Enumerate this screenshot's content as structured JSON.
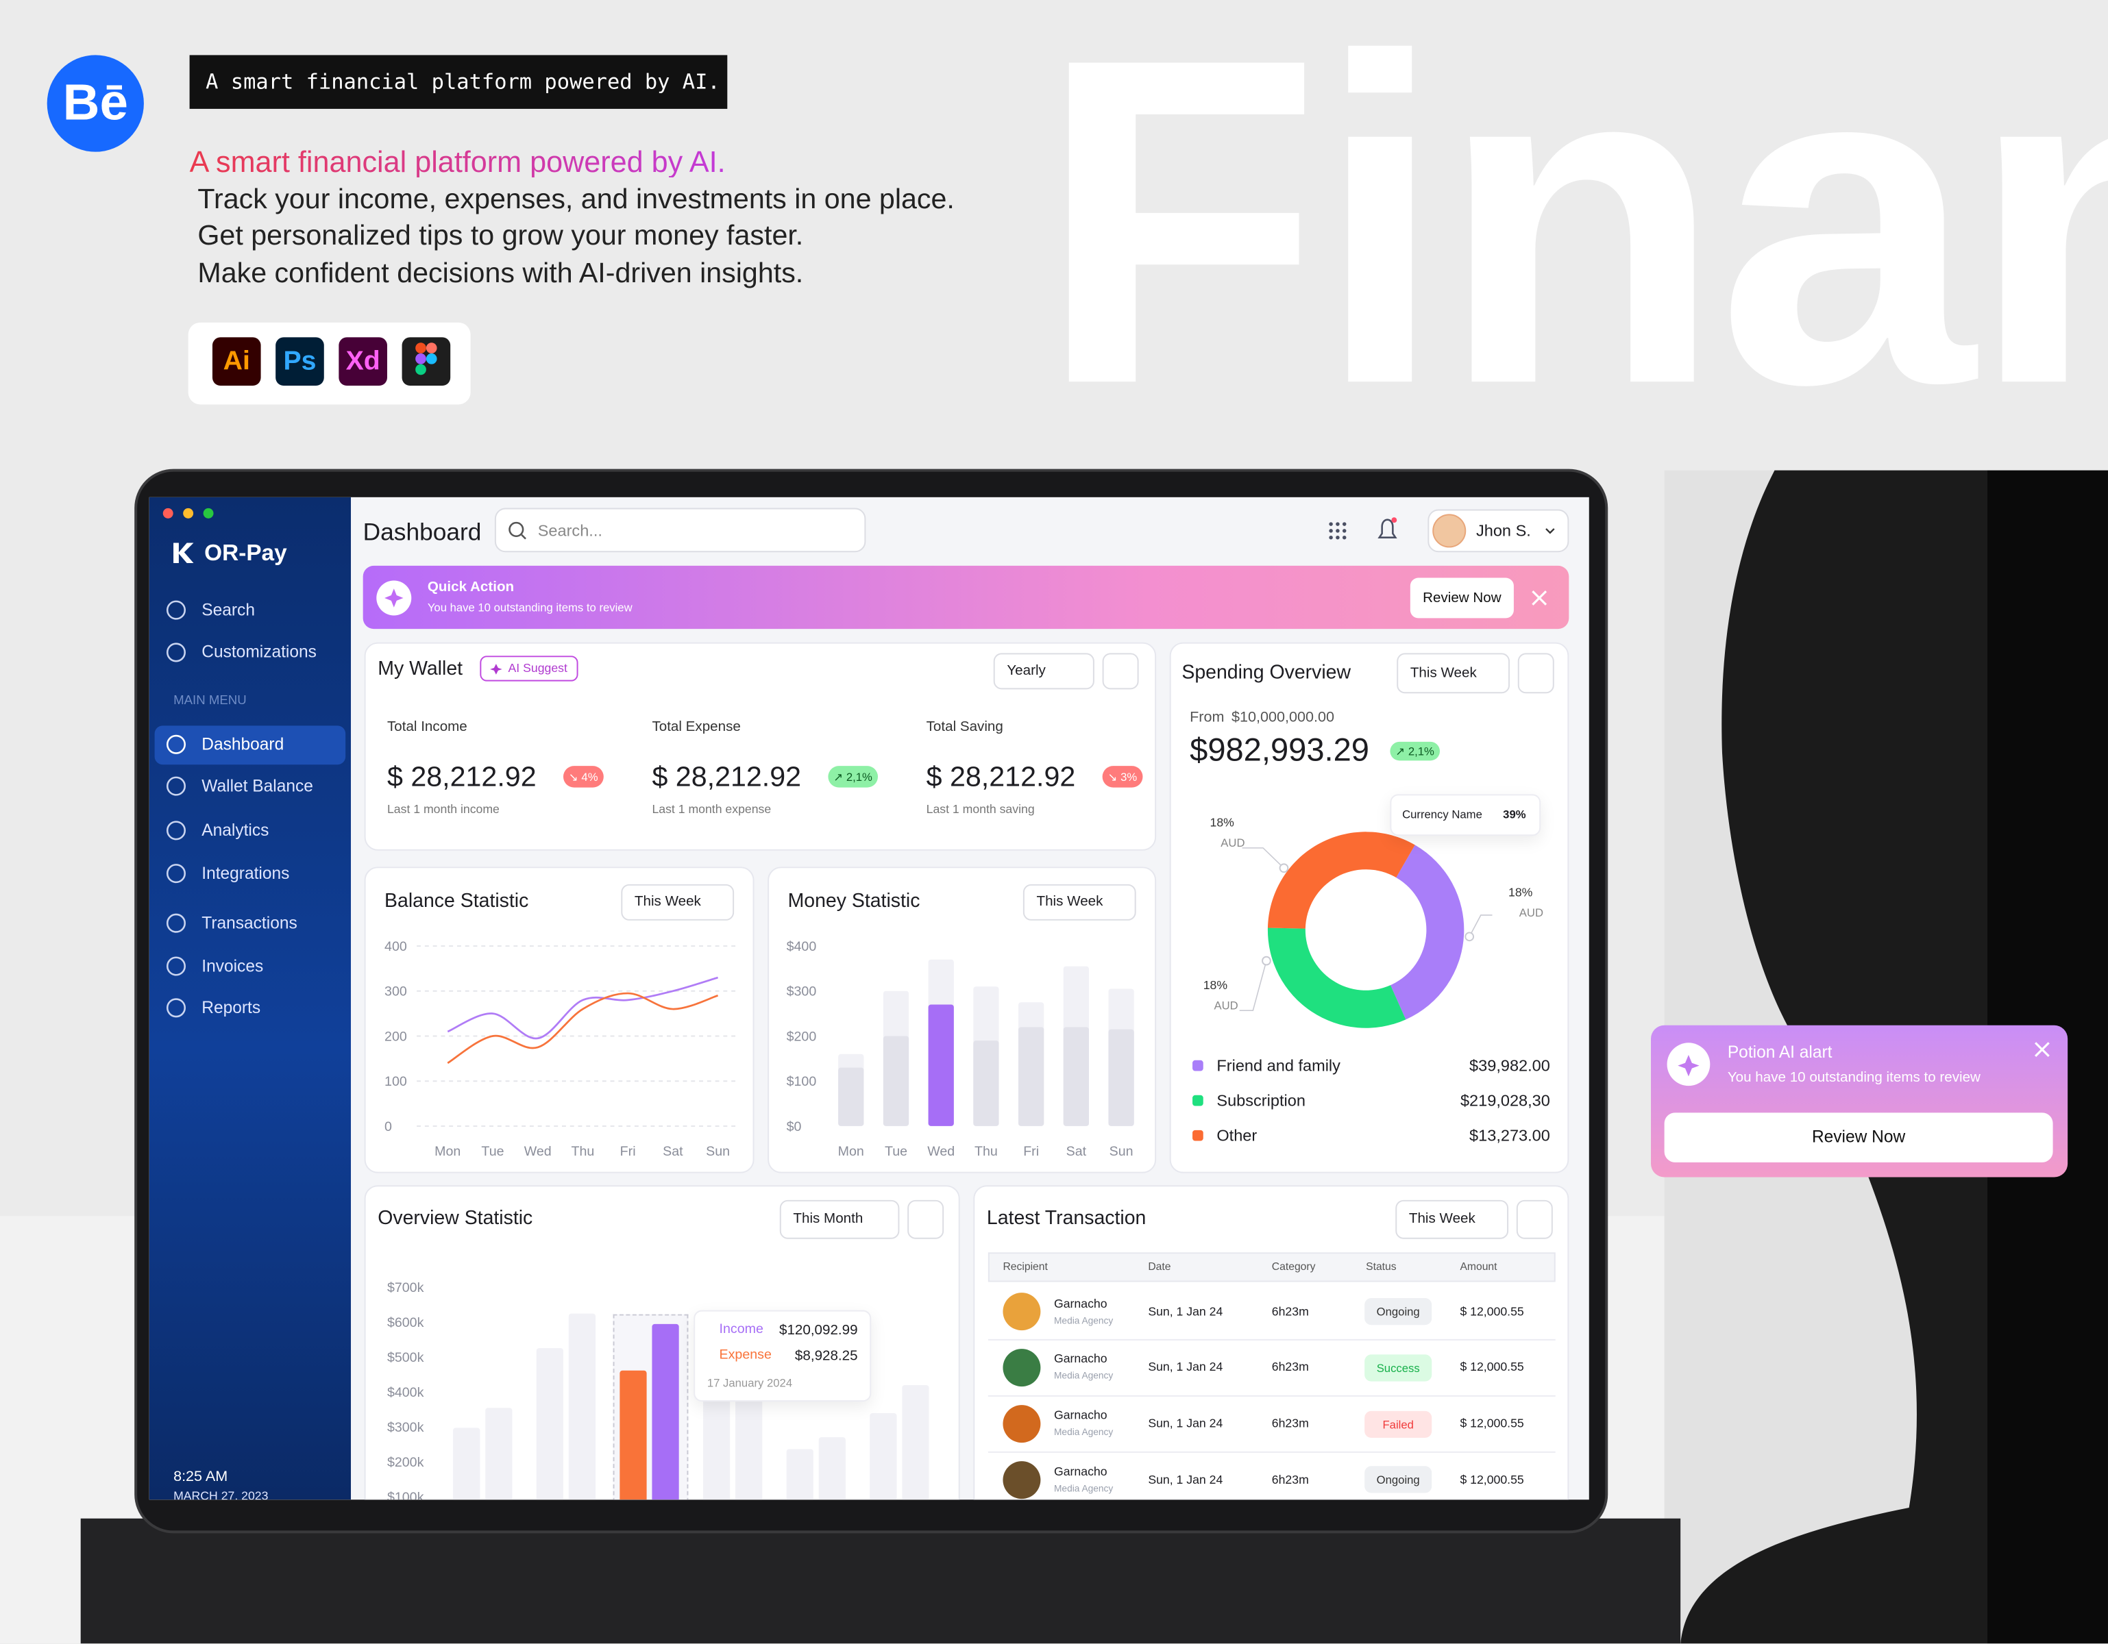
{
  "promo": {
    "tag": "A smart financial platform powered by AI.",
    "headline": "A smart financial platform powered by AI.",
    "lines": [
      "Track your income, expenses, and investments in one place.",
      "Get personalized tips to grow your money faster.",
      "Make confident decisions with AI-driven insights."
    ],
    "logo": "Bē",
    "tools": [
      {
        "label": "Ai",
        "bg": "#330000",
        "color": "#ff9a00"
      },
      {
        "label": "Ps",
        "bg": "#001e36",
        "color": "#31a8ff"
      },
      {
        "label": "Xd",
        "bg": "#470137",
        "color": "#ff61f6"
      }
    ],
    "big_word": "Finan"
  },
  "sidebar": {
    "brand": "OR-Pay",
    "top_items": [
      "Search",
      "Customizations"
    ],
    "section": "MAIN MENU",
    "menu": [
      "Dashboard",
      "Wallet Balance",
      "Analytics",
      "Integrations",
      "Transactions",
      "Invoices",
      "Reports"
    ],
    "active": 0,
    "time": "8:25 AM",
    "date": "MARCH 27, 2023"
  },
  "topbar": {
    "title": "Dashboard",
    "search_placeholder": "Search...",
    "user": "Jhon S."
  },
  "quick_action": {
    "title": "Quick Action",
    "text": "You have 10 outstanding items to review",
    "button": "Review Now"
  },
  "wallet": {
    "title": "My Wallet",
    "badge": "AI Suggest",
    "period": "Yearly",
    "stats": [
      {
        "label": "Total Income",
        "amount": "$ 28,212.92",
        "change": "↘ 4%",
        "change_bg": "#ff7b7b",
        "change_color": "#ffffff",
        "note": "Last 1 month income"
      },
      {
        "label": "Total Expense",
        "amount": "$ 28,212.92",
        "change": "↗ 2,1%",
        "change_bg": "#8ef0a6",
        "change_color": "#0c5a22",
        "note": "Last 1 month expense"
      },
      {
        "label": "Total Saving",
        "amount": "$ 28,212.92",
        "change": "↘ 3%",
        "change_bg": "#ff7b7b",
        "change_color": "#ffffff",
        "note": "Last 1 month saving"
      }
    ]
  },
  "balance_statistic": {
    "title": "Balance Statistic",
    "period": "This Week",
    "chart_data": {
      "type": "line",
      "categories": [
        "Mon",
        "Tue",
        "Wed",
        "Thu",
        "Fri",
        "Sat",
        "Sun"
      ],
      "ylim": [
        0,
        400
      ],
      "yticks": [
        0,
        100,
        200,
        300,
        400
      ],
      "grid": true,
      "series": [
        {
          "color": "#b07cf6",
          "values": [
            210,
            250,
            195,
            280,
            280,
            300,
            330
          ]
        },
        {
          "color": "#f7733b",
          "values": [
            140,
            200,
            175,
            260,
            295,
            260,
            290
          ]
        }
      ]
    }
  },
  "money_statistic": {
    "title": "Money Statistic",
    "period": "This Week",
    "chart_data": {
      "type": "bar",
      "bar_mode": "overlap",
      "categories": [
        "Mon",
        "Tue",
        "Wed",
        "Thu",
        "Fri",
        "Sat",
        "Sun"
      ],
      "ylim": [
        0,
        400
      ],
      "yticks": [
        {
          "value": 0,
          "label": "$0"
        },
        {
          "value": 100,
          "label": "$100"
        },
        {
          "value": 200,
          "label": "$200"
        },
        {
          "value": 300,
          "label": "$300"
        },
        {
          "value": 400,
          "label": "$400"
        }
      ],
      "grid": false,
      "highlight_index": 2,
      "series": [
        {
          "color": "#f1f1f6",
          "values": [
            160,
            300,
            370,
            310,
            275,
            355,
            305
          ]
        },
        {
          "color": "#e2e2ea",
          "highlight_color": "#a66ef6",
          "values": [
            130,
            200,
            270,
            190,
            220,
            220,
            215
          ]
        }
      ]
    }
  },
  "spending": {
    "title": "Spending Overview",
    "period": "This Week",
    "from": "From",
    "from_amount": "$10,000,000.00",
    "total": "$982,993.29",
    "change": "↗ 2,1%",
    "tooltip": {
      "label": "Currency Name",
      "value": "39%"
    },
    "callouts": [
      {
        "value": "18%",
        "unit": "AUD"
      },
      {
        "value": "18%",
        "unit": "AUD"
      },
      {
        "value": "18%",
        "unit": "AUD"
      }
    ],
    "chart_data": {
      "type": "pie",
      "donut": true,
      "values": [
        35,
        32,
        33
      ],
      "categories": [
        "Friend and family",
        "Subscription",
        "Other"
      ],
      "colors": [
        "#a97ef9",
        "#1fe07f",
        "#fb6b32"
      ],
      "amounts": [
        "$39,982.00",
        "$219,028,30",
        "$13,273.00"
      ]
    }
  },
  "overview": {
    "title": "Overview Statistic",
    "period": "This Month",
    "tooltip": {
      "amounts": [
        "$120,092.99",
        "$8,928.25"
      ],
      "date": "17 January 2024"
    },
    "chart_data": {
      "type": "bar",
      "bar_mode": "group",
      "ylim": [
        0,
        700000
      ],
      "yticks": [
        {
          "value": 700000,
          "label": "$700k"
        },
        {
          "value": 600000,
          "label": "$600k"
        },
        {
          "value": 500000,
          "label": "$500k"
        },
        {
          "value": 400000,
          "label": "$400k"
        },
        {
          "value": 300000,
          "label": "$300k"
        },
        {
          "value": 200000,
          "label": "$200k"
        },
        {
          "value": 100000,
          "label": "$100k"
        }
      ],
      "grid": false,
      "highlight_index": 2,
      "series": [
        {
          "name": "Expense",
          "color": "#f1f1f6",
          "highlight_color": "#f97339",
          "values": [
            298000,
            526000,
            462000,
            380000,
            237000,
            340000
          ]
        },
        {
          "name": "Income",
          "color": "#f1f1f6",
          "highlight_color": "#a66ef6",
          "values": [
            355000,
            625000,
            595000,
            380000,
            271000,
            420000
          ]
        }
      ]
    }
  },
  "transactions": {
    "title": "Latest Transaction",
    "period": "This Week",
    "headers": [
      "Recipient",
      "Date",
      "Category",
      "Status",
      "Amount"
    ],
    "rows": [
      {
        "name": "Garnacho",
        "sub": "Media Agency",
        "date": "Sun, 1 Jan 24",
        "category": "6h23m",
        "status": "Ongoing",
        "status_bg": "#eef0f3",
        "status_color": "#333333",
        "amount": "$ 12,000.55"
      },
      {
        "name": "Garnacho",
        "sub": "Media Agency",
        "date": "Sun, 1 Jan 24",
        "category": "6h23m",
        "status": "Success",
        "status_bg": "#dbfbe3",
        "status_color": "#17b04a",
        "amount": "$ 12,000.55"
      },
      {
        "name": "Garnacho",
        "sub": "Media Agency",
        "date": "Sun, 1 Jan 24",
        "category": "6h23m",
        "status": "Failed",
        "status_bg": "#ffe4e4",
        "status_color": "#f03a3a",
        "amount": "$ 12,000.55"
      },
      {
        "name": "Garnacho",
        "sub": "Media Agency",
        "date": "Sun, 1 Jan 24",
        "category": "6h23m",
        "status": "Ongoing",
        "status_bg": "#eef0f3",
        "status_color": "#333333",
        "amount": "$ 12,000.55"
      }
    ]
  },
  "alert": {
    "title": "Potion AI alart",
    "text": "You have 10 outstanding items to review",
    "button": "Review Now"
  }
}
